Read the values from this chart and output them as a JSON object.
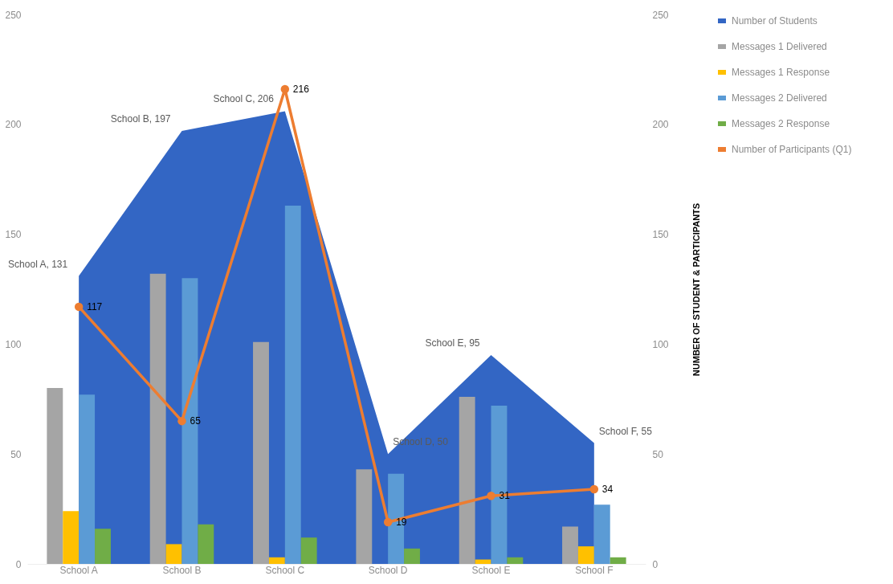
{
  "chart_data": {
    "type": "bar",
    "categories": [
      "School A",
      "School B",
      "School C",
      "School D",
      "School E",
      "School F"
    ],
    "series": [
      {
        "name": "Number of Students",
        "type": "area",
        "color": "#3366c4",
        "values": [
          131,
          197,
          206,
          50,
          95,
          55
        ],
        "value_labels": [
          "School A, 131",
          "School B, 197",
          "School C, 206",
          "School D, 50",
          "School E, 95",
          "School F, 55"
        ]
      },
      {
        "name": "Messages 1 Delivered",
        "color": "#a5a5a5",
        "values": [
          80,
          132,
          101,
          43,
          76,
          17
        ]
      },
      {
        "name": "Messages 1 Response",
        "color": "#ffc000",
        "values": [
          24,
          9,
          3,
          null,
          2,
          8
        ]
      },
      {
        "name": "Messages 2 Delivered",
        "color": "#5b9bd5",
        "values": [
          77,
          130,
          163,
          41,
          72,
          27
        ]
      },
      {
        "name": "Messages 2 Response",
        "color": "#70ad47",
        "values": [
          16,
          18,
          12,
          7,
          3,
          3
        ]
      },
      {
        "name": "Number of Participants (Q1)",
        "type": "line",
        "axis": "y2",
        "color": "#ed7d31",
        "values": [
          117,
          65,
          216,
          19,
          31,
          34
        ],
        "marker": "circle",
        "value_labels": [
          "117",
          "65",
          "216",
          "19",
          "31",
          "34"
        ]
      }
    ],
    "y2label": "NUMBER OF STUDENT & PARTICIPANTS",
    "ylim": [
      0,
      250
    ],
    "yticks": [
      0,
      50,
      100,
      150,
      200,
      250
    ],
    "y2lim": [
      0,
      250
    ],
    "y2ticks": [
      0,
      50,
      100,
      150,
      200,
      250
    ],
    "grid": false,
    "legend": "right",
    "line_style": "solid"
  }
}
